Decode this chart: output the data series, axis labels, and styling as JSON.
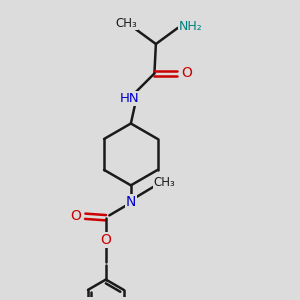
{
  "bg_color": "#dcdcdc",
  "bond_color": "#1a1a1a",
  "N_color": "#0000cc",
  "O_color": "#cc0000",
  "NH2_color": "#008080",
  "line_width": 1.8,
  "fig_width": 3.0,
  "fig_height": 3.0,
  "dpi": 100,
  "xlim": [
    0,
    10
  ],
  "ylim": [
    0,
    10
  ]
}
